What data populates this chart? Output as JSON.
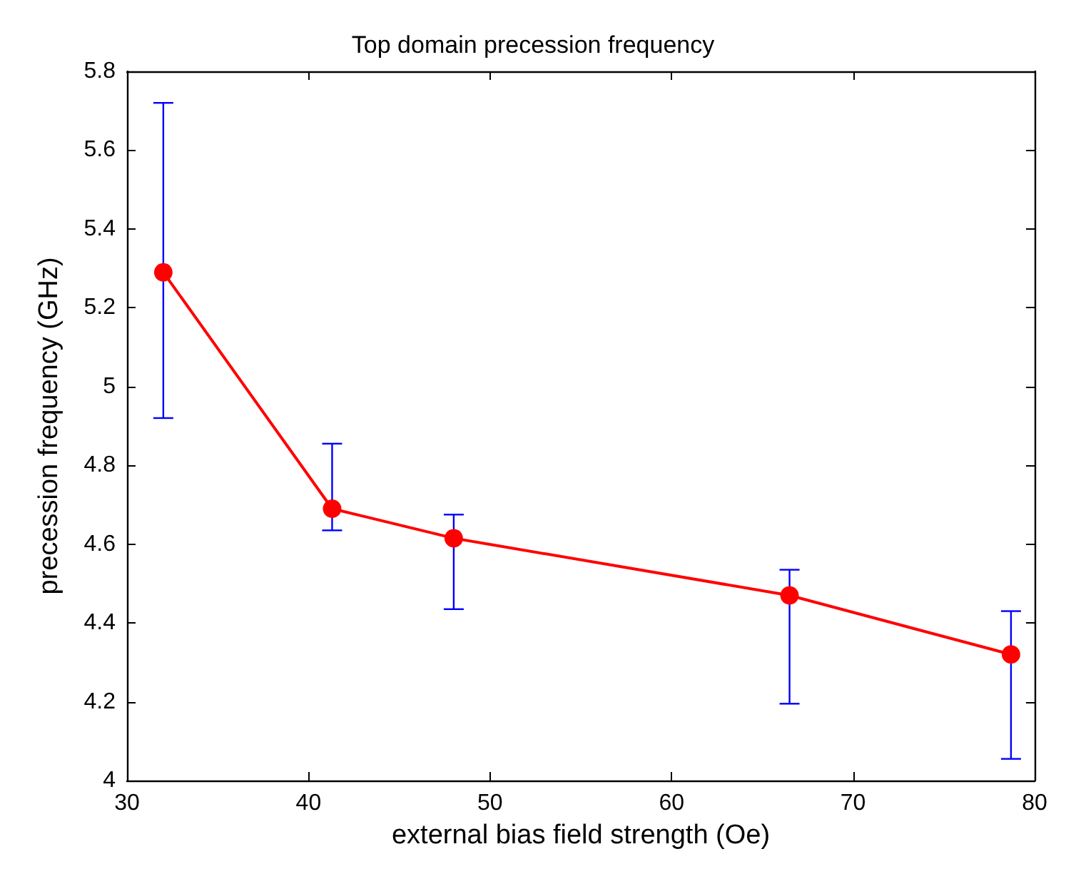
{
  "chart_data": {
    "type": "line",
    "title": "Top domain precession frequency",
    "xlabel": "external bias field strength (Oe)",
    "ylabel": "precession frequency (GHz)",
    "x": [
      32.0,
      41.3,
      48.0,
      66.5,
      78.7
    ],
    "series": [
      {
        "color": "#ff0000",
        "values": [
          5.29,
          4.69,
          4.615,
          4.47,
          4.32
        ],
        "errors": [
          [
            4.92,
            5.72
          ],
          [
            4.635,
            4.855
          ],
          [
            4.435,
            4.675
          ],
          [
            4.195,
            4.535
          ],
          [
            4.055,
            4.43
          ]
        ]
      }
    ],
    "xlim": [
      30,
      80
    ],
    "xticks": [
      30,
      40,
      50,
      60,
      70,
      80
    ],
    "ylim": [
      4,
      5.8
    ],
    "yticks": [
      4,
      4.2,
      4.4,
      4.6,
      4.8,
      5,
      5.2,
      5.4,
      5.6,
      5.8
    ],
    "grid": false,
    "marker": "circle",
    "line_style": "solid"
  }
}
